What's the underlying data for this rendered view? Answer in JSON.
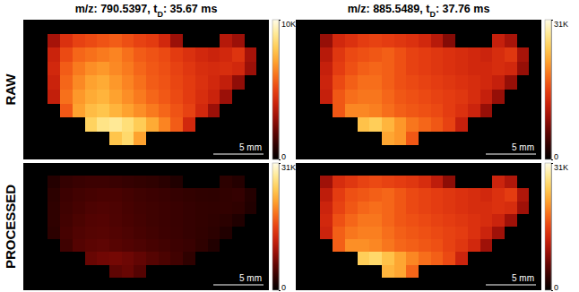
{
  "chart_data": [
    {
      "type": "heatmap",
      "title": "m/z: 790.5397, tD: 35.67 ms",
      "y_label": "RAW",
      "annotations": [
        "5 mm"
      ],
      "tick_labels": false,
      "color_range": [
        0,
        10000
      ],
      "color_ticks": [
        0,
        {
          "value": 10000,
          "label": "10K"
        }
      ],
      "cells": [
        [
          0,
          0,
          0,
          0,
          0,
          0,
          0,
          0,
          0,
          0,
          0,
          0,
          0,
          0,
          0,
          0,
          0,
          0,
          0,
          0
        ],
        [
          0,
          0,
          3200,
          4500,
          5000,
          5200,
          5400,
          5600,
          5300,
          5000,
          4800,
          4200,
          3000,
          0,
          0,
          0,
          3500,
          3000,
          0,
          0
        ],
        [
          0,
          0,
          4000,
          5200,
          5800,
          6000,
          6200,
          6400,
          6000,
          5600,
          5400,
          5200,
          4800,
          4500,
          4200,
          4000,
          4200,
          4600,
          3200,
          0
        ],
        [
          0,
          0,
          4200,
          5600,
          6200,
          6600,
          6800,
          6500,
          6200,
          5800,
          5500,
          5300,
          5000,
          4700,
          4400,
          4300,
          4400,
          4200,
          3000,
          0
        ],
        [
          0,
          0,
          4000,
          5800,
          6500,
          7000,
          7200,
          6800,
          6400,
          6000,
          5600,
          5400,
          5100,
          4800,
          4500,
          4200,
          3800,
          2800,
          0,
          0
        ],
        [
          0,
          0,
          3800,
          6000,
          6800,
          7200,
          7400,
          7000,
          6600,
          6200,
          5800,
          5500,
          5200,
          4800,
          4400,
          4000,
          3000,
          0,
          0,
          0
        ],
        [
          0,
          0,
          0,
          5500,
          7000,
          7600,
          7800,
          7400,
          7000,
          6600,
          6200,
          5800,
          5400,
          5000,
          4200,
          3000,
          0,
          0,
          0,
          0
        ],
        [
          0,
          0,
          0,
          0,
          0,
          8200,
          8800,
          9000,
          8600,
          8000,
          7200,
          6400,
          5600,
          4200,
          0,
          0,
          0,
          0,
          0,
          0
        ],
        [
          0,
          0,
          0,
          0,
          0,
          0,
          0,
          7800,
          8400,
          7000,
          0,
          0,
          0,
          0,
          0,
          0,
          0,
          0,
          0,
          0
        ],
        [
          0,
          0,
          0,
          0,
          0,
          0,
          0,
          0,
          0,
          0,
          0,
          0,
          0,
          0,
          0,
          0,
          0,
          0,
          0,
          0
        ]
      ]
    },
    {
      "type": "heatmap",
      "title": "m/z: 885.5489, tD: 37.76 ms",
      "annotations": [
        "5 mm"
      ],
      "tick_labels": false,
      "color_range": [
        0,
        31000
      ],
      "color_ticks": [
        0,
        {
          "value": 31000,
          "label": "31K"
        }
      ],
      "cells": [
        [
          0,
          0,
          0,
          0,
          0,
          0,
          0,
          0,
          0,
          0,
          0,
          0,
          0,
          0,
          0,
          0,
          0,
          0,
          0,
          0
        ],
        [
          0,
          0,
          9000,
          13000,
          14000,
          15000,
          15500,
          15000,
          14500,
          14000,
          13000,
          11000,
          8000,
          0,
          0,
          0,
          12000,
          10000,
          0,
          0
        ],
        [
          0,
          0,
          11000,
          14500,
          16000,
          16500,
          17000,
          17500,
          16500,
          15500,
          15000,
          14500,
          14000,
          13500,
          13000,
          12500,
          13500,
          14500,
          10000,
          0
        ],
        [
          0,
          0,
          12000,
          15000,
          16500,
          17500,
          18000,
          17500,
          16500,
          15500,
          15000,
          14500,
          14000,
          13500,
          13000,
          13000,
          13500,
          13000,
          9000,
          0
        ],
        [
          0,
          0,
          12500,
          16000,
          17500,
          18500,
          18500,
          17500,
          16500,
          16000,
          15500,
          15000,
          14500,
          14000,
          13500,
          13000,
          12000,
          9000,
          0,
          0
        ],
        [
          0,
          0,
          12000,
          17000,
          18500,
          19000,
          19000,
          18000,
          17000,
          16500,
          16000,
          15500,
          15000,
          14500,
          13500,
          12000,
          9000,
          0,
          0,
          0
        ],
        [
          0,
          0,
          0,
          17000,
          20000,
          20000,
          19500,
          18500,
          17500,
          17000,
          16500,
          16000,
          15000,
          14000,
          12500,
          9000,
          0,
          0,
          0,
          0
        ],
        [
          0,
          0,
          0,
          0,
          0,
          24000,
          25000,
          23000,
          21000,
          19000,
          18000,
          17000,
          15500,
          12000,
          0,
          0,
          0,
          0,
          0,
          0
        ],
        [
          0,
          0,
          0,
          0,
          0,
          0,
          0,
          22000,
          21000,
          17000,
          0,
          0,
          0,
          0,
          0,
          0,
          0,
          0,
          0,
          0
        ],
        [
          0,
          0,
          0,
          0,
          0,
          0,
          0,
          0,
          0,
          0,
          0,
          0,
          0,
          0,
          0,
          0,
          0,
          0,
          0,
          0
        ]
      ]
    },
    {
      "type": "heatmap",
      "y_label": "PROCESSED",
      "annotations": [
        "5 mm"
      ],
      "tick_labels": false,
      "color_range": [
        0,
        31000
      ],
      "color_ticks": [
        0,
        {
          "value": 31000,
          "label": "31K"
        }
      ],
      "cells": [
        [
          0,
          0,
          0,
          0,
          0,
          0,
          0,
          0,
          0,
          0,
          0,
          0,
          0,
          0,
          0,
          0,
          0,
          0,
          0,
          0
        ],
        [
          0,
          0,
          2500,
          3500,
          3800,
          4000,
          4000,
          3800,
          3600,
          3400,
          3200,
          2800,
          2200,
          0,
          0,
          0,
          3000,
          2500,
          0,
          0
        ],
        [
          0,
          0,
          3000,
          4000,
          4400,
          4600,
          4800,
          4800,
          4500,
          4200,
          4000,
          3800,
          3600,
          3400,
          3200,
          3100,
          3300,
          3500,
          2500,
          0
        ],
        [
          0,
          0,
          3200,
          4200,
          4600,
          5000,
          5200,
          5000,
          4700,
          4400,
          4200,
          4000,
          3800,
          3600,
          3400,
          3300,
          3400,
          3200,
          2300,
          0
        ],
        [
          0,
          0,
          3200,
          4400,
          4900,
          5300,
          5400,
          5100,
          4800,
          4500,
          4200,
          4000,
          3800,
          3600,
          3400,
          3200,
          2900,
          2200,
          0,
          0
        ],
        [
          0,
          0,
          3000,
          4600,
          5200,
          5500,
          5600,
          5300,
          5000,
          4700,
          4400,
          4100,
          3900,
          3600,
          3300,
          3000,
          2300,
          0,
          0,
          0
        ],
        [
          0,
          0,
          0,
          4200,
          5400,
          5800,
          6000,
          5600,
          5300,
          5000,
          4700,
          4400,
          4100,
          3800,
          3200,
          2300,
          0,
          0,
          0,
          0
        ],
        [
          0,
          0,
          0,
          0,
          0,
          6500,
          7000,
          7200,
          6800,
          6200,
          5500,
          4900,
          4300,
          3200,
          0,
          0,
          0,
          0,
          0,
          0
        ],
        [
          0,
          0,
          0,
          0,
          0,
          0,
          0,
          6000,
          6500,
          5400,
          0,
          0,
          0,
          0,
          0,
          0,
          0,
          0,
          0,
          0
        ],
        [
          0,
          0,
          0,
          0,
          0,
          0,
          0,
          0,
          0,
          0,
          0,
          0,
          0,
          0,
          0,
          0,
          0,
          0,
          0,
          0
        ]
      ]
    },
    {
      "type": "heatmap",
      "annotations": [
        "5 mm"
      ],
      "tick_labels": false,
      "color_range": [
        0,
        31000
      ],
      "color_ticks": [
        0,
        {
          "value": 31000,
          "label": "31K"
        }
      ],
      "cells": [
        [
          0,
          0,
          0,
          0,
          0,
          0,
          0,
          0,
          0,
          0,
          0,
          0,
          0,
          0,
          0,
          0,
          0,
          0,
          0,
          0
        ],
        [
          0,
          0,
          9500,
          13500,
          14500,
          15500,
          16000,
          15500,
          15000,
          14500,
          13500,
          11500,
          8500,
          0,
          0,
          0,
          12500,
          10500,
          0,
          0
        ],
        [
          0,
          0,
          11500,
          15000,
          16500,
          17000,
          17500,
          18000,
          17000,
          16000,
          15500,
          15000,
          14500,
          14000,
          13500,
          13000,
          14000,
          15000,
          10500,
          0
        ],
        [
          0,
          0,
          12500,
          15500,
          17000,
          18000,
          18500,
          18000,
          17000,
          16000,
          15500,
          15000,
          14500,
          14000,
          13500,
          13500,
          14000,
          13500,
          9500,
          0
        ],
        [
          0,
          0,
          13000,
          16500,
          18000,
          19000,
          19000,
          18000,
          17000,
          16500,
          16000,
          15500,
          15000,
          14500,
          14000,
          13500,
          12500,
          9500,
          0,
          0
        ],
        [
          0,
          0,
          12500,
          17500,
          19000,
          19500,
          19500,
          18500,
          17500,
          17000,
          16500,
          16000,
          15500,
          15000,
          14000,
          12500,
          9500,
          0,
          0,
          0
        ],
        [
          0,
          0,
          0,
          17500,
          20500,
          20500,
          20000,
          19000,
          18000,
          17500,
          17000,
          16500,
          15500,
          14500,
          13000,
          9500,
          0,
          0,
          0,
          0
        ],
        [
          0,
          0,
          0,
          0,
          0,
          25000,
          26000,
          24000,
          22000,
          20000,
          18500,
          17500,
          16000,
          12500,
          0,
          0,
          0,
          0,
          0,
          0
        ],
        [
          0,
          0,
          0,
          0,
          0,
          0,
          0,
          23000,
          22000,
          18000,
          0,
          0,
          0,
          0,
          0,
          0,
          0,
          0,
          0,
          0
        ],
        [
          0,
          0,
          0,
          0,
          0,
          0,
          0,
          0,
          0,
          0,
          0,
          0,
          0,
          0,
          0,
          0,
          0,
          0,
          0,
          0
        ]
      ]
    }
  ]
}
